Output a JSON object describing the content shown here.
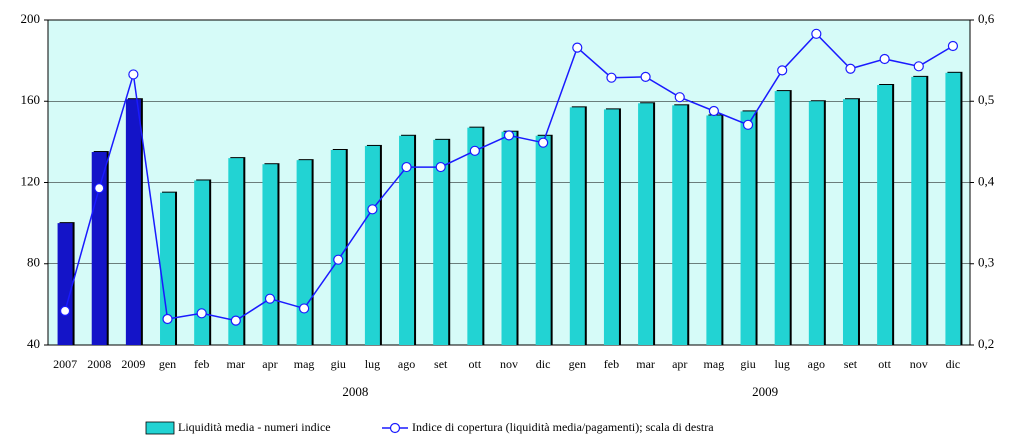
{
  "chart_data": {
    "type": "bar_line",
    "categories": [
      "2007",
      "2008",
      "2009",
      "gen",
      "feb",
      "mar",
      "apr",
      "mag",
      "giu",
      "lug",
      "ago",
      "set",
      "ott",
      "nov",
      "dic",
      "gen",
      "feb",
      "mar",
      "apr",
      "mag",
      "giu",
      "lug",
      "ago",
      "set",
      "ott",
      "nov",
      "dic"
    ],
    "groups": [
      {
        "label": "2008",
        "start": 3,
        "end": 14
      },
      {
        "label": "2009",
        "start": 15,
        "end": 26
      }
    ],
    "series": [
      {
        "name": "Liquidità media - numeri indice",
        "type": "bar",
        "color": "#22d3d3",
        "bar_colors": [
          "#1414c8",
          "#1414c8",
          "#1414c8",
          "#22d3d3",
          "#22d3d3",
          "#22d3d3",
          "#22d3d3",
          "#22d3d3",
          "#22d3d3",
          "#22d3d3",
          "#22d3d3",
          "#22d3d3",
          "#22d3d3",
          "#22d3d3",
          "#22d3d3",
          "#22d3d3",
          "#22d3d3",
          "#22d3d3",
          "#22d3d3",
          "#22d3d3",
          "#22d3d3",
          "#22d3d3",
          "#22d3d3",
          "#22d3d3",
          "#22d3d3",
          "#22d3d3",
          "#22d3d3"
        ],
        "values": [
          100,
          135,
          161,
          115,
          121,
          132,
          129,
          131,
          136,
          138,
          143,
          141,
          147,
          145,
          143,
          157,
          156,
          159,
          158,
          153,
          155,
          165,
          160,
          161,
          168,
          172,
          174
        ]
      },
      {
        "name": "Indice di copertura (liquidità media/pagamenti); scala di destra",
        "type": "line",
        "axis": "y2",
        "color": "#1a1aff",
        "values": [
          0.242,
          0.393,
          0.533,
          0.232,
          0.239,
          0.23,
          0.257,
          0.245,
          0.305,
          0.367,
          0.419,
          0.419,
          0.439,
          0.458,
          0.449,
          0.566,
          0.529,
          0.53,
          0.505,
          0.488,
          0.471,
          0.538,
          0.583,
          0.54,
          0.552,
          0.543,
          0.568
        ]
      }
    ],
    "ylim": [
      40,
      200
    ],
    "yticks": [
      40,
      80,
      120,
      160,
      200
    ],
    "y2lim": [
      0.2,
      0.6
    ],
    "y2ticks": [
      {
        "value": 0.2,
        "label": "0,2"
      },
      {
        "value": 0.3,
        "label": "0,3"
      },
      {
        "value": 0.4,
        "label": "0,4"
      },
      {
        "value": 0.5,
        "label": "0,5"
      },
      {
        "value": 0.6,
        "label": "0,6"
      }
    ],
    "grid": true,
    "legend": "bottom"
  }
}
